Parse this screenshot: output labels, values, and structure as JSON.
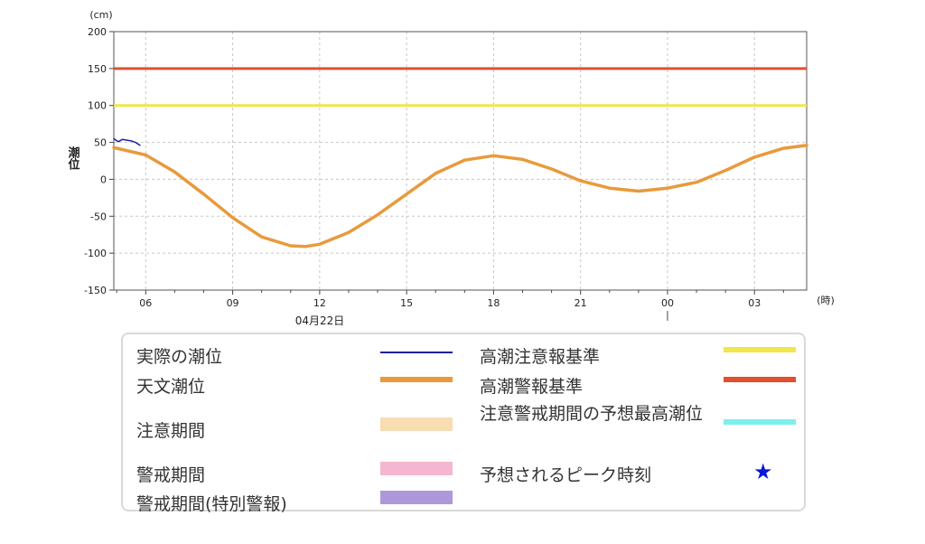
{
  "chart_data": {
    "type": "line",
    "y_unit": "(cm)",
    "ylabel": "潮位",
    "x_unit": "(時)",
    "date_label": "04月22日",
    "ylim": [
      -150,
      200
    ],
    "y_ticks": [
      200,
      150,
      100,
      50,
      0,
      -50,
      -100,
      -150
    ],
    "x_tick_labels": [
      "06",
      "09",
      "12",
      "15",
      "18",
      "21",
      "00",
      "03"
    ],
    "grid": true,
    "series": [
      {
        "name": "実際の潮位",
        "color": "#1e1e9e",
        "x": [
          4.9,
          5.05,
          5.2,
          5.35,
          5.5,
          5.65,
          5.8
        ],
        "y": [
          55,
          51,
          54,
          53,
          52,
          50,
          46
        ]
      },
      {
        "name": "天文潮位",
        "color": "#e89a3c",
        "x": [
          4.9,
          6.0,
          7.0,
          8.0,
          9.0,
          10.0,
          11.0,
          11.5,
          12.0,
          13.0,
          14.0,
          15.0,
          16.0,
          17.0,
          18.0,
          19.0,
          20.0,
          21.0,
          22.0,
          23.0,
          24.0,
          25.0,
          26.0,
          27.0,
          28.0,
          28.8
        ],
        "y": [
          43,
          33,
          10,
          -20,
          -52,
          -78,
          -90,
          -91,
          -88,
          -72,
          -48,
          -20,
          8,
          26,
          32,
          27,
          14,
          -2,
          -12,
          -16,
          -12,
          -4,
          12,
          30,
          42,
          46
        ]
      }
    ],
    "reference_lines": [
      {
        "name": "高潮注意報基準",
        "y": 100,
        "color": "#f1e64a"
      },
      {
        "name": "高潮警報基準",
        "y": 150,
        "color": "#e0502f"
      }
    ]
  },
  "legend": {
    "items": [
      {
        "label": "実際の潮位",
        "color": "#1e1e9e",
        "kind": "line"
      },
      {
        "label": "天文潮位",
        "color": "#e89a3c",
        "kind": "band"
      },
      {
        "label": "注意期間",
        "color": "#f8dcb2",
        "kind": "rect"
      },
      {
        "label": "警戒期間",
        "color": "#f4b7cf",
        "kind": "rect"
      },
      {
        "label": "警戒期間(特別警報)",
        "color": "#ae98dc",
        "kind": "rect"
      },
      {
        "label": "高潮注意報基準",
        "color": "#f1e64a",
        "kind": "band"
      },
      {
        "label": "高潮警報基準",
        "color": "#e0502f",
        "kind": "band"
      },
      {
        "label": "注意警戒期間の予想最高潮位",
        "color": "#7cf0ee",
        "kind": "band"
      },
      {
        "label": "予想されるピーク時刻",
        "color": "#0b17d6",
        "kind": "star",
        "symbol": "★"
      }
    ]
  }
}
